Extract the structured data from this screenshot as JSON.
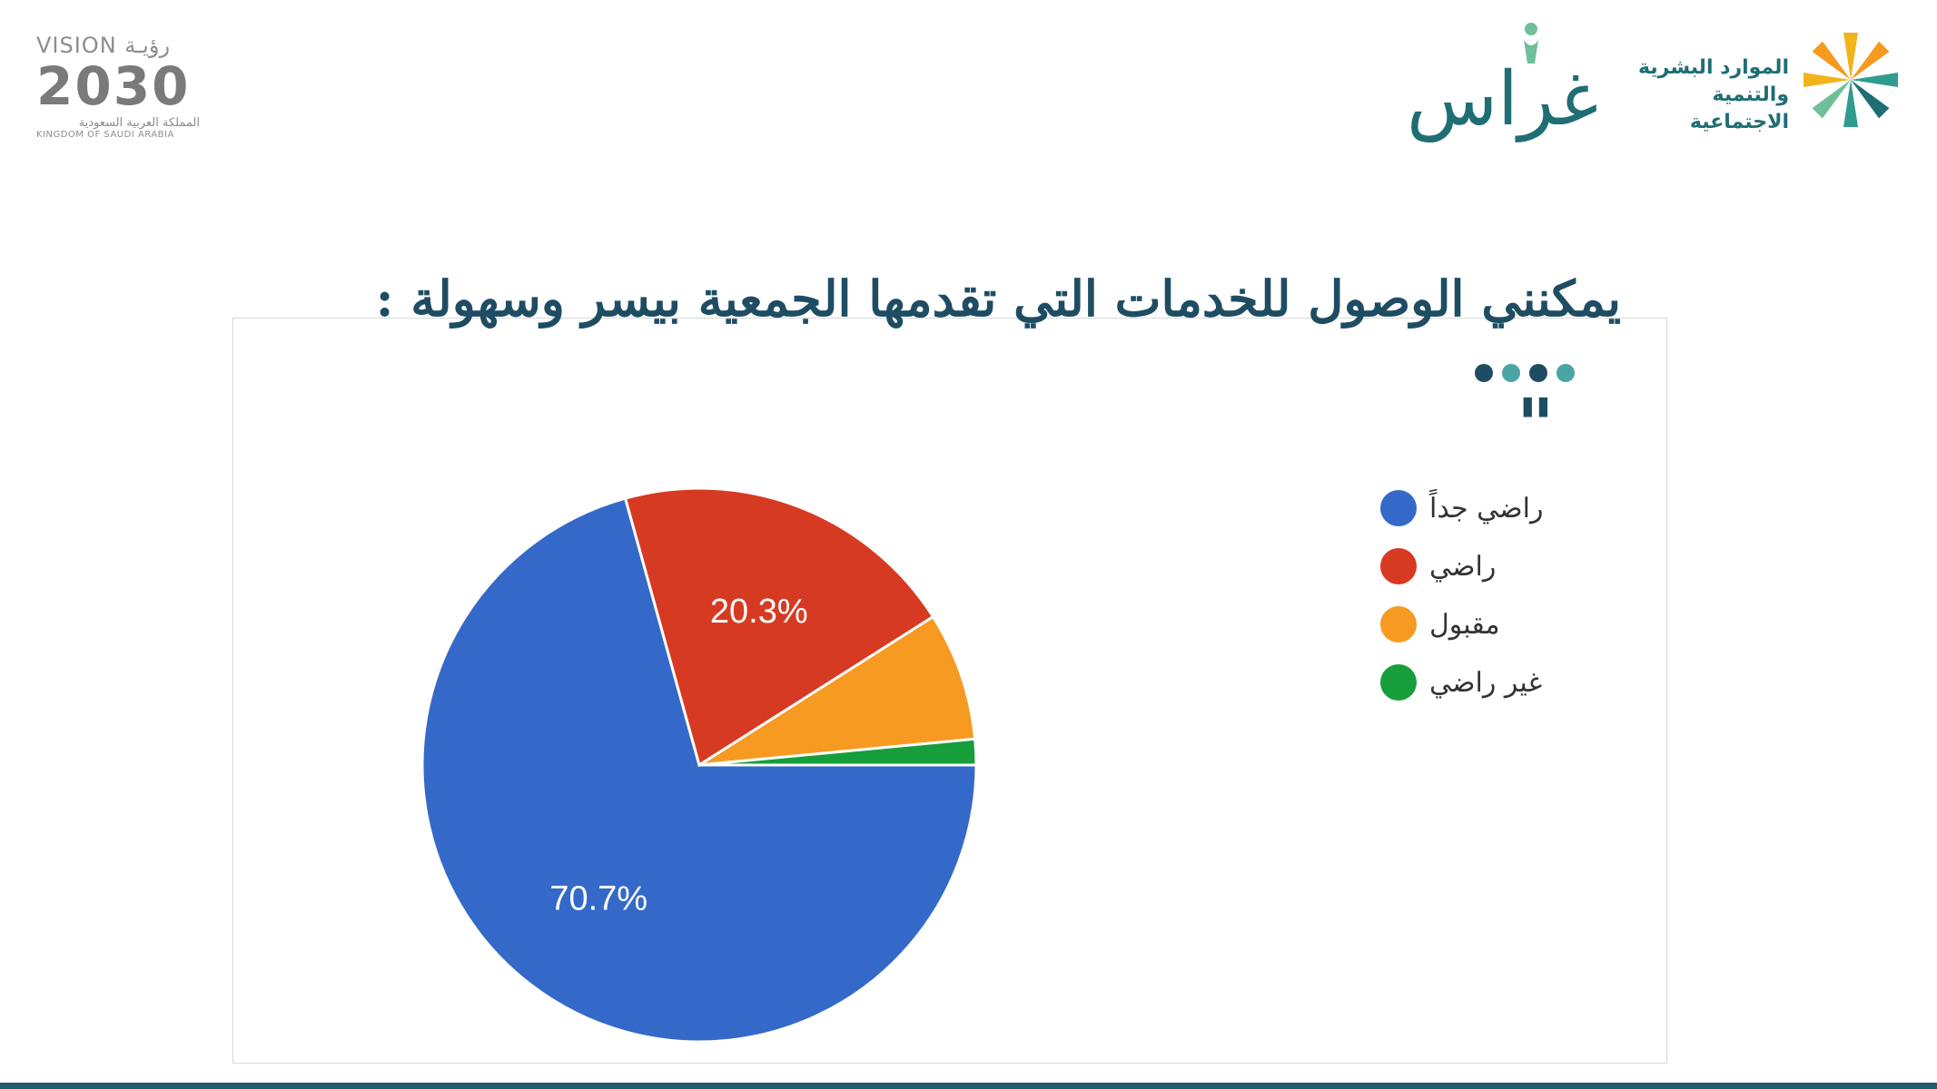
{
  "header": {
    "vision_logo": {
      "top": "VISION رؤيـة",
      "number": "2030",
      "arabic": "المملكة العربية السعودية",
      "english": "KINGDOM OF SAUDI ARABIA"
    },
    "ghiras_logo": {
      "text": "غراس"
    },
    "ministry_logo": {
      "line1": "الموارد البشرية",
      "line2": "والتنمية الاجتماعية",
      "icon": "palm-star-icon"
    }
  },
  "title": "يمكنني الوصول للخدمات التي تقدمها الجمعية بيسر وسهولة :",
  "decor": {
    "dot_colors": [
      "#1e4d63",
      "#4aa5a4",
      "#1e4d63",
      "#4aa5a4"
    ],
    "quote": "\""
  },
  "chart_data": {
    "type": "pie",
    "start": "3 o'clock, clockwise",
    "slices": [
      {
        "label": "راضي جداً",
        "value": 70.7,
        "display": "70.7%",
        "color": "#3569c9"
      },
      {
        "label": "راضي",
        "value": 20.3,
        "display": "20.3%",
        "color": "#d73a22"
      },
      {
        "label": "مقبول",
        "value": 7.5,
        "display": "",
        "color": "#f79a22"
      },
      {
        "label": "غير راضي",
        "value": 1.5,
        "display": "",
        "color": "#169e3a"
      }
    ],
    "legend_position": "right"
  },
  "colors": {
    "title": "#1e4d63",
    "bottom_bar": "#1f5e6e",
    "brand_teal": "#1f6e74"
  }
}
